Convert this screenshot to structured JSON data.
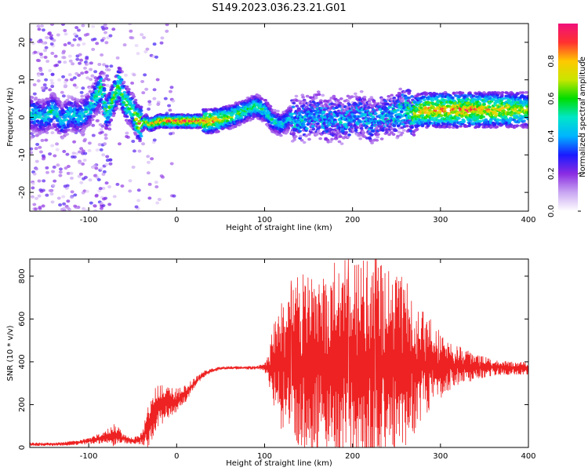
{
  "figure": {
    "title": "S149.2023.036.23.21.G01"
  },
  "colors": {
    "spectrogram_background": "#ffffff",
    "snr_line": "#ee2222",
    "axis": "#000000",
    "colormap": [
      "#ffffff",
      "#c9a6f2",
      "#8a2be2",
      "#1a1aff",
      "#00b4ff",
      "#00e6c8",
      "#00dd00",
      "#c8e600",
      "#ffc800",
      "#ff3030",
      "#f0107a"
    ]
  },
  "chart_data": [
    {
      "type": "heatmap",
      "xlabel": "Height of straight line (km)",
      "ylabel": "Frequency (Hz)",
      "xlim": [
        -167,
        400
      ],
      "ylim": [
        -25,
        25
      ],
      "x_ticks": [
        -100,
        0,
        100,
        200,
        300,
        400
      ],
      "y_ticks": [
        -20,
        -10,
        0,
        10,
        20
      ],
      "grid": false,
      "colorbar": {
        "label": "Normalized spectral amplitude",
        "range": [
          0,
          1
        ],
        "ticks": [
          "0.0",
          "0.2",
          "0.4",
          "0.6",
          "0.8"
        ],
        "tick_values": [
          0.0,
          0.2,
          0.4,
          0.6,
          0.8
        ]
      },
      "ridge": {
        "x": [
          -167,
          -150,
          -140,
          -130,
          -120,
          -110,
          -100,
          -95,
          -90,
          -85,
          -80,
          -75,
          -70,
          -65,
          -60,
          -55,
          -50,
          -45,
          -40,
          -35,
          -30,
          -20,
          0,
          20,
          40,
          60,
          70,
          80,
          90,
          100,
          110,
          120,
          130,
          140,
          150,
          160,
          170,
          180,
          190,
          200,
          210,
          220,
          230,
          240,
          250,
          260,
          270,
          280,
          300,
          320,
          340,
          360,
          380,
          400
        ],
        "y": [
          1,
          0,
          2,
          -1,
          1,
          0,
          2,
          4,
          6,
          8,
          1,
          3,
          6,
          9,
          5,
          3,
          2,
          -1,
          -2,
          -1,
          -2,
          -1,
          -1,
          -1,
          -1,
          0,
          1,
          2,
          3,
          2,
          -1,
          -2,
          0,
          -1,
          0,
          1,
          -1,
          0,
          -1,
          0,
          1,
          -1,
          0,
          1,
          1,
          2,
          1,
          2,
          2,
          2,
          2,
          2,
          2,
          2
        ],
        "amplitude": [
          0.5,
          0.5,
          0.55,
          0.5,
          0.5,
          0.5,
          0.5,
          0.55,
          0.6,
          0.7,
          0.6,
          0.65,
          0.7,
          0.7,
          0.65,
          0.7,
          0.6,
          0.85,
          0.9,
          0.8,
          0.85,
          0.9,
          0.95,
          0.95,
          0.9,
          0.7,
          0.65,
          0.6,
          0.6,
          0.6,
          0.55,
          0.5,
          0.5,
          0.5,
          0.5,
          0.5,
          0.5,
          0.5,
          0.5,
          0.5,
          0.5,
          0.5,
          0.5,
          0.5,
          0.55,
          0.6,
          0.75,
          0.85,
          0.9,
          0.9,
          0.9,
          0.85,
          0.8,
          0.7
        ]
      }
    },
    {
      "type": "line",
      "xlabel": "Height of straight line (km)",
      "ylabel": "SNR (10 * v/v)",
      "xlim": [
        -167,
        400
      ],
      "ylim": [
        0,
        880
      ],
      "x_ticks": [
        -100,
        0,
        100,
        200,
        300,
        400
      ],
      "y_ticks": [
        0,
        200,
        400,
        600,
        800
      ],
      "grid": false,
      "envelope": {
        "x": [
          -167,
          -140,
          -120,
          -100,
          -80,
          -70,
          -60,
          -50,
          -40,
          -35,
          -30,
          -25,
          -20,
          -10,
          0,
          10,
          20,
          30,
          40,
          50,
          60,
          70,
          80,
          90,
          100,
          105,
          110,
          120,
          130,
          140,
          150,
          160,
          170,
          180,
          190,
          200,
          210,
          220,
          230,
          240,
          250,
          260,
          270,
          280,
          290,
          300,
          320,
          340,
          360,
          380,
          400
        ],
        "center": [
          15,
          15,
          20,
          30,
          50,
          60,
          40,
          30,
          40,
          70,
          120,
          170,
          200,
          210,
          220,
          250,
          300,
          340,
          360,
          370,
          372,
          372,
          372,
          372,
          375,
          375,
          375,
          380,
          380,
          380,
          380,
          380,
          380,
          380,
          380,
          380,
          380,
          380,
          380,
          380,
          380,
          380,
          380,
          380,
          380,
          380,
          380,
          375,
          375,
          370,
          370
        ],
        "amplitude": [
          8,
          8,
          10,
          15,
          30,
          60,
          20,
          15,
          30,
          80,
          120,
          120,
          100,
          80,
          60,
          40,
          25,
          15,
          10,
          8,
          8,
          8,
          8,
          8,
          20,
          80,
          200,
          320,
          380,
          400,
          420,
          440,
          450,
          460,
          470,
          480,
          500,
          520,
          480,
          450,
          420,
          380,
          320,
          260,
          200,
          150,
          100,
          60,
          40,
          30,
          30
        ]
      }
    }
  ]
}
